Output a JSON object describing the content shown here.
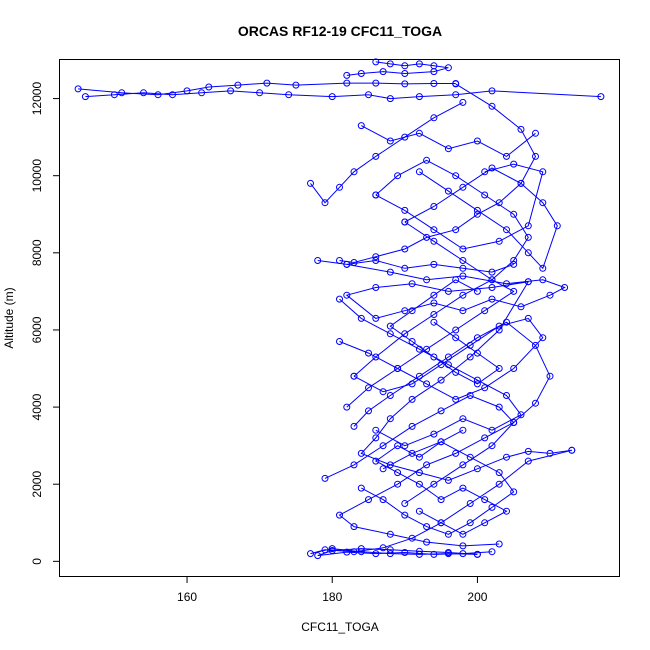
{
  "chart_data": {
    "type": "line",
    "title": "ORCAS RF12-19 CFC11_TOGA",
    "xlabel": "CFC11_TOGA",
    "ylabel": "Altitude (m)",
    "xlim": [
      142.5,
      219.5
    ],
    "ylim": [
      -380,
      13000
    ],
    "xticks": [
      160,
      180,
      200
    ],
    "yticks": [
      0,
      2000,
      4000,
      6000,
      8000,
      10000,
      12000
    ],
    "grid": false,
    "legend": "none",
    "markers": "open-circle",
    "color": "#0000ff",
    "series": [
      {
        "x": [
          145,
          151,
          156,
          160,
          163,
          167,
          171,
          175,
          182,
          186,
          190,
          194,
          197
        ],
        "y": [
          12250,
          12150,
          12100,
          12200,
          12300,
          12350,
          12400,
          12350,
          12400,
          12400,
          12380,
          12390,
          12390
        ]
      },
      {
        "x": [
          146,
          150,
          154,
          158,
          162,
          166,
          170,
          174,
          180,
          185,
          188,
          192,
          197,
          202,
          217
        ],
        "y": [
          12050,
          12100,
          12150,
          12100,
          12150,
          12200,
          12150,
          12100,
          12050,
          12100,
          12000,
          12050,
          12100,
          12200,
          12050
        ]
      },
      {
        "x": [
          186,
          188,
          190,
          192,
          194,
          196,
          194,
          190,
          187,
          184,
          182
        ],
        "y": [
          12950,
          12900,
          12850,
          12900,
          12850,
          12800,
          12700,
          12650,
          12700,
          12650,
          12600
        ]
      },
      {
        "x": [
          197,
          202,
          206,
          208,
          206,
          203,
          200,
          197,
          193,
          190,
          186,
          183,
          181
        ],
        "y": [
          12380,
          11800,
          11200,
          10500,
          9800,
          9300,
          9000,
          8600,
          8400,
          8100,
          7900,
          7750,
          7800
        ]
      },
      {
        "x": [
          198,
          194,
          190,
          186,
          183,
          181,
          179,
          177
        ],
        "y": [
          11900,
          11500,
          11000,
          10500,
          10100,
          9700,
          9300,
          9800
        ]
      },
      {
        "x": [
          182,
          188,
          193,
          198,
          204,
          209,
          212,
          210,
          206,
          202,
          198,
          194,
          190,
          186,
          182,
          186,
          191,
          196,
          202,
          207
        ],
        "y": [
          7700,
          7500,
          7300,
          7400,
          7200,
          7300,
          7100,
          6900,
          6600,
          6800,
          6500,
          6700,
          6500,
          6300,
          6900,
          7100,
          7200,
          7000,
          7100,
          7250
        ]
      },
      {
        "x": [
          207,
          203,
          199,
          195,
          191,
          188,
          186,
          184,
          188,
          192,
          196,
          200,
          204,
          207,
          210,
          213
        ],
        "y": [
          7250,
          6000,
          5300,
          4700,
          4200,
          3700,
          3200,
          2800,
          2500,
          2300,
          2100,
          2400,
          2700,
          2850,
          2800,
          2880
        ]
      },
      {
        "x": [
          213,
          207,
          203,
          199,
          195,
          191,
          187,
          183,
          179,
          177,
          180,
          184,
          188,
          192,
          196,
          200
        ],
        "y": [
          2880,
          2600,
          2000,
          1500,
          1000,
          600,
          350,
          250,
          300,
          200,
          330,
          250,
          200,
          180,
          200,
          180
        ]
      },
      {
        "x": [
          200,
          196,
          192,
          188,
          184,
          180,
          178,
          182,
          186,
          190,
          194,
          198,
          202
        ],
        "y": [
          180,
          230,
          260,
          300,
          330,
          280,
          150,
          240,
          200,
          230,
          180,
          200,
          250
        ]
      },
      {
        "x": [
          179,
          183,
          187,
          191,
          195,
          199,
          203,
          205,
          201,
          197,
          193,
          189,
          185,
          181,
          183,
          188,
          193,
          198,
          203
        ],
        "y": [
          2150,
          2500,
          3000,
          3500,
          3900,
          4300,
          4000,
          3600,
          3200,
          2800,
          2500,
          2000,
          1600,
          1200,
          900,
          700,
          500,
          400,
          450
        ]
      },
      {
        "x": [
          190,
          194,
          198,
          202,
          205,
          208,
          210,
          208,
          204,
          200,
          196,
          192,
          188,
          185,
          183
        ],
        "y": [
          1500,
          2000,
          2500,
          3000,
          3600,
          4100,
          4800,
          5600,
          6200,
          5800,
          5300,
          4800,
          4300,
          3900,
          3500
        ]
      },
      {
        "x": [
          181,
          185,
          189,
          193,
          197,
          201,
          205,
          209,
          207,
          203,
          199,
          195,
          191,
          187,
          183
        ],
        "y": [
          5700,
          5400,
          5000,
          4600,
          4200,
          4500,
          5000,
          5800,
          6300,
          6100,
          5600,
          5100,
          4600,
          4400,
          4800
        ]
      },
      {
        "x": [
          183,
          186,
          190,
          194,
          198,
          202,
          205,
          201,
          197,
          193,
          189,
          185,
          182
        ],
        "y": [
          4800,
          5300,
          5900,
          6400,
          6900,
          7300,
          7000,
          6500,
          6000,
          5500,
          5000,
          4500,
          4000
        ]
      },
      {
        "x": [
          192,
          196,
          200,
          204,
          207,
          209,
          211,
          209,
          206,
          202,
          198,
          194,
          190
        ],
        "y": [
          10100,
          9600,
          9100,
          8600,
          8000,
          7600,
          8700,
          9300,
          9800,
          10200,
          9700,
          9200,
          8800
        ]
      },
      {
        "x": [
          190,
          194,
          198,
          202,
          205,
          207,
          205,
          201,
          197,
          193,
          189,
          186
        ],
        "y": [
          8800,
          8300,
          7800,
          7300,
          7800,
          8400,
          9000,
          9500,
          10000,
          10400,
          10000,
          9500
        ]
      },
      {
        "x": [
          186,
          190,
          194,
          198,
          203,
          207,
          209,
          205,
          201
        ],
        "y": [
          9500,
          9100,
          8600,
          8100,
          8300,
          8700,
          10100,
          10300,
          10100
        ]
      },
      {
        "x": [
          184,
          188,
          192,
          196,
          200,
          204,
          208
        ],
        "y": [
          11300,
          10900,
          11100,
          10700,
          10900,
          10500,
          11100
        ]
      },
      {
        "x": [
          184,
          187,
          190,
          193,
          196,
          199,
          202,
          205,
          203,
          199,
          195,
          191,
          187
        ],
        "y": [
          1900,
          1600,
          1200,
          900,
          700,
          1000,
          1400,
          1800,
          2300,
          2700,
          3100,
          2800,
          2400
        ]
      },
      {
        "x": [
          186,
          190,
          194,
          198,
          202,
          206,
          204,
          200,
          196,
          192,
          188,
          184,
          181
        ],
        "y": [
          3400,
          3000,
          3300,
          3700,
          3400,
          3800,
          4300,
          4700,
          5100,
          5500,
          5900,
          6300,
          6800
        ]
      },
      {
        "x": [
          178,
          182,
          186,
          190,
          194,
          198,
          202,
          205
        ],
        "y": [
          7800,
          7700,
          7800,
          7600,
          7700,
          7600,
          7500,
          7700
        ]
      },
      {
        "x": [
          192,
          195,
          198,
          201,
          204,
          201,
          198,
          195,
          192,
          189,
          186,
          189,
          192,
          195,
          198
        ],
        "y": [
          1300,
          1000,
          700,
          1000,
          1300,
          1600,
          1900,
          1600,
          2000,
          2300,
          2600,
          3000,
          2700,
          3100,
          3400
        ]
      },
      {
        "x": [
          194,
          197,
          200,
          203,
          200,
          197,
          194,
          191,
          188,
          191,
          194,
          197,
          200
        ],
        "y": [
          6200,
          5800,
          5400,
          5000,
          4600,
          4900,
          5300,
          5700,
          6100,
          6500,
          6900,
          7300,
          7000
        ]
      }
    ]
  }
}
